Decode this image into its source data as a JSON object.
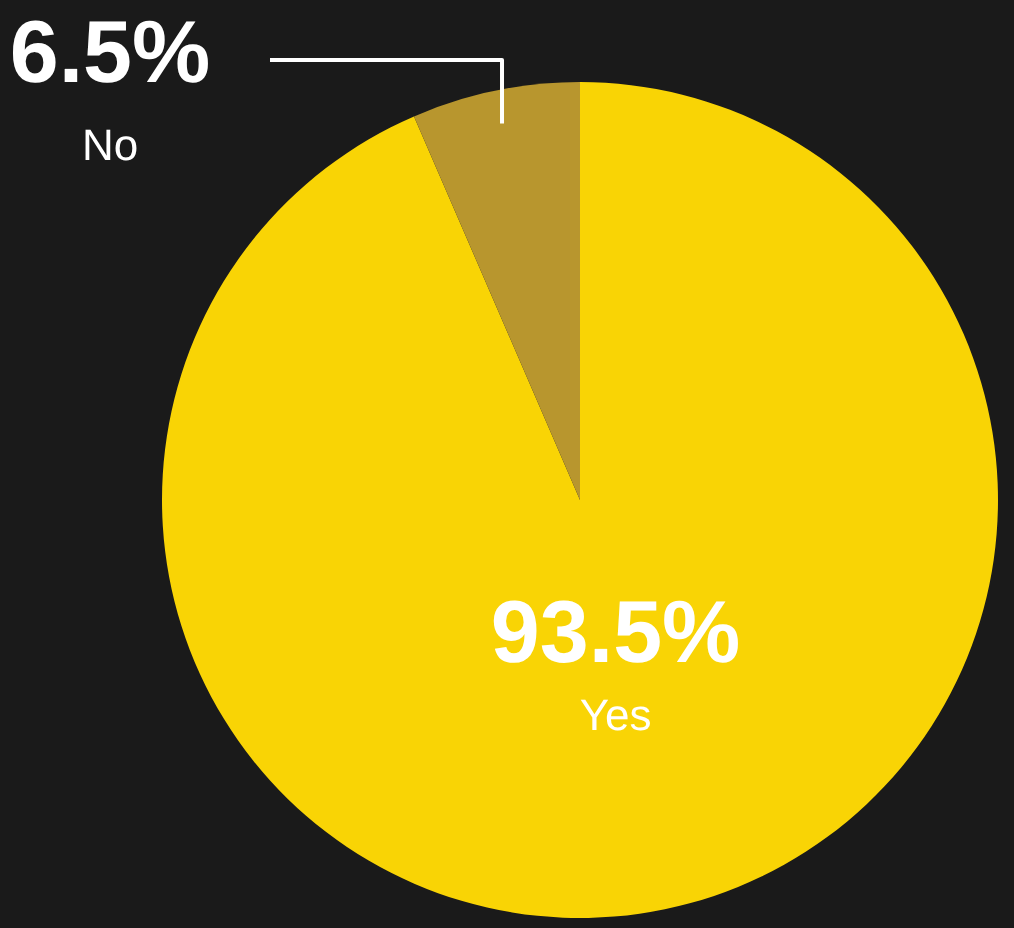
{
  "chart_data": {
    "type": "pie",
    "categories": [
      "Yes",
      "No"
    ],
    "values": [
      93.5,
      6.5
    ],
    "colors": [
      "#f9d405",
      "#b8962e"
    ],
    "value_labels": [
      "93.5%",
      "6.5%"
    ]
  }
}
